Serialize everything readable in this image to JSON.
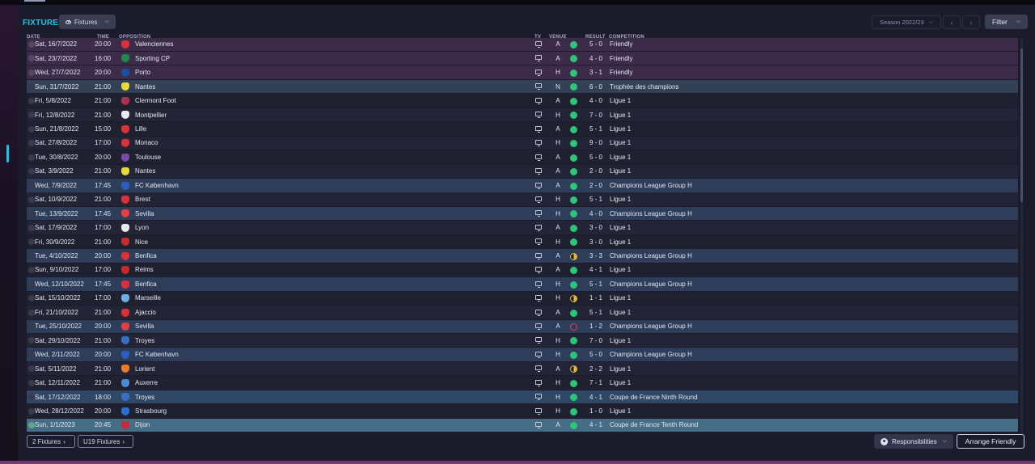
{
  "header": {
    "title": "FIXTURES",
    "view_dropdown": "Fixtures",
    "season": "Season 2022/23",
    "filter": "Filter"
  },
  "columns": {
    "date": "DATE",
    "time": "TIME",
    "opposition": "OPPOSITION",
    "tv": "TV",
    "venue": "VENUE",
    "result": "RESULT",
    "competition": "COMPETITION"
  },
  "colors": {
    "accent": "#19c8e6",
    "win": "#2ec57a",
    "draw": "#e6b43a",
    "loss": "#d8474f",
    "friendly_row": "#3c2c4a",
    "champions_league_row": "#2d3d5a",
    "current_row": "#456e86"
  },
  "fixtures": [
    {
      "date": "Sat, 16/7/2022",
      "time": "20:00",
      "opp": "Valenciennes",
      "crest": "#d9313a",
      "venue": "A",
      "result": "win",
      "score": "5 - 0",
      "comp": "Friendly",
      "type": "friendly"
    },
    {
      "date": "Sat, 23/7/2022",
      "time": "16:00",
      "opp": "Sporting CP",
      "crest": "#1f8a4c",
      "venue": "A",
      "result": "win",
      "score": "4 - 0",
      "comp": "Friendly",
      "type": "friendly"
    },
    {
      "date": "Wed, 27/7/2022",
      "time": "20:00",
      "opp": "Porto",
      "crest": "#1e4fa3",
      "venue": "H",
      "result": "win",
      "score": "3 - 1",
      "comp": "Friendly",
      "type": "friendly"
    },
    {
      "date": "Sun, 31/7/2022",
      "time": "21:00",
      "opp": "Nantes",
      "crest": "#e8d83a",
      "venue": "N",
      "result": "win",
      "score": "6 - 0",
      "comp": "Trophée des champions",
      "type": "trophee"
    },
    {
      "date": "Fri, 5/8/2022",
      "time": "21:00",
      "opp": "Clermont Foot",
      "crest": "#b0304a",
      "venue": "A",
      "result": "win",
      "score": "4 - 0",
      "comp": "Ligue 1",
      "type": "plain"
    },
    {
      "date": "Fri, 12/8/2022",
      "time": "21:00",
      "opp": "Montpellier",
      "crest": "#e8e8ee",
      "venue": "H",
      "result": "win",
      "score": "7 - 0",
      "comp": "Ligue 1",
      "type": "alt"
    },
    {
      "date": "Sun, 21/8/2022",
      "time": "15:00",
      "opp": "Lille",
      "crest": "#d9313a",
      "venue": "A",
      "result": "win",
      "score": "5 - 1",
      "comp": "Ligue 1",
      "type": "plain"
    },
    {
      "date": "Sat, 27/8/2022",
      "time": "17:00",
      "opp": "Monaco",
      "crest": "#d9313a",
      "venue": "H",
      "result": "win",
      "score": "9 - 0",
      "comp": "Ligue 1",
      "type": "alt"
    },
    {
      "date": "Tue, 30/8/2022",
      "time": "20:00",
      "opp": "Toulouse",
      "crest": "#7b4aa8",
      "venue": "A",
      "result": "win",
      "score": "5 - 0",
      "comp": "Ligue 1",
      "type": "plain"
    },
    {
      "date": "Sat, 3/9/2022",
      "time": "21:00",
      "opp": "Nantes",
      "crest": "#e8d83a",
      "venue": "A",
      "result": "win",
      "score": "2 - 0",
      "comp": "Ligue 1",
      "type": "alt"
    },
    {
      "date": "Wed, 7/9/2022",
      "time": "17:45",
      "opp": "FC København",
      "crest": "#2a5fc0",
      "venue": "A",
      "result": "win",
      "score": "2 - 0",
      "comp": "Champions League Group H",
      "type": "ucl"
    },
    {
      "date": "Sat, 10/9/2022",
      "time": "21:00",
      "opp": "Brest",
      "crest": "#d9313a",
      "venue": "H",
      "result": "win",
      "score": "5 - 1",
      "comp": "Ligue 1",
      "type": "alt"
    },
    {
      "date": "Tue, 13/9/2022",
      "time": "17:45",
      "opp": "Sevilla",
      "crest": "#e04040",
      "venue": "H",
      "result": "win",
      "score": "4 - 0",
      "comp": "Champions League Group H",
      "type": "ucl"
    },
    {
      "date": "Sat, 17/9/2022",
      "time": "17:00",
      "opp": "Lyon",
      "crest": "#e8e8ee",
      "venue": "A",
      "result": "win",
      "score": "3 - 0",
      "comp": "Ligue 1",
      "type": "alt"
    },
    {
      "date": "Fri, 30/9/2022",
      "time": "21:00",
      "opp": "Nice",
      "crest": "#c62a2a",
      "venue": "H",
      "result": "win",
      "score": "3 - 0",
      "comp": "Ligue 1",
      "type": "plain"
    },
    {
      "date": "Tue, 4/10/2022",
      "time": "20:00",
      "opp": "Benfica",
      "crest": "#d9313a",
      "venue": "A",
      "result": "draw",
      "score": "3 - 3",
      "comp": "Champions League Group H",
      "type": "ucl"
    },
    {
      "date": "Sun, 9/10/2022",
      "time": "17:00",
      "opp": "Reims",
      "crest": "#c62a2a",
      "venue": "A",
      "result": "win",
      "score": "4 - 1",
      "comp": "Ligue 1",
      "type": "plain"
    },
    {
      "date": "Wed, 12/10/2022",
      "time": "17:45",
      "opp": "Benfica",
      "crest": "#d9313a",
      "venue": "H",
      "result": "win",
      "score": "5 - 1",
      "comp": "Champions League Group H",
      "type": "ucl"
    },
    {
      "date": "Sat, 15/10/2022",
      "time": "17:00",
      "opp": "Marseille",
      "crest": "#6ab0e0",
      "venue": "H",
      "result": "draw",
      "score": "1 - 1",
      "comp": "Ligue 1",
      "type": "plain"
    },
    {
      "date": "Fri, 21/10/2022",
      "time": "21:00",
      "opp": "Ajaccio",
      "crest": "#d9313a",
      "venue": "A",
      "result": "win",
      "score": "5 - 1",
      "comp": "Ligue 1",
      "type": "alt"
    },
    {
      "date": "Tue, 25/10/2022",
      "time": "20:00",
      "opp": "Sevilla",
      "crest": "#e04040",
      "venue": "A",
      "result": "loss",
      "score": "1 - 2",
      "comp": "Champions League Group H",
      "type": "ucl"
    },
    {
      "date": "Sat, 29/10/2022",
      "time": "21:00",
      "opp": "Troyes",
      "crest": "#3a6fc0",
      "venue": "H",
      "result": "win",
      "score": "7 - 0",
      "comp": "Ligue 1",
      "type": "alt"
    },
    {
      "date": "Wed, 2/11/2022",
      "time": "20:00",
      "opp": "FC København",
      "crest": "#2a5fc0",
      "venue": "H",
      "result": "win",
      "score": "5 - 0",
      "comp": "Champions League Group H",
      "type": "ucl"
    },
    {
      "date": "Sat, 5/11/2022",
      "time": "21:00",
      "opp": "Lorient",
      "crest": "#e87a2a",
      "venue": "A",
      "result": "draw",
      "score": "2 - 2",
      "comp": "Ligue 1",
      "type": "alt"
    },
    {
      "date": "Sat, 12/11/2022",
      "time": "21:00",
      "opp": "Auxerre",
      "crest": "#4a8ad8",
      "venue": "H",
      "result": "win",
      "score": "7 - 1",
      "comp": "Ligue 1",
      "type": "plain"
    },
    {
      "date": "Sat, 17/12/2022",
      "time": "18:00",
      "opp": "Troyes",
      "crest": "#3a6fc0",
      "venue": "H",
      "result": "win",
      "score": "4 - 1",
      "comp": "Coupe de France Ninth Round",
      "type": "cdf"
    },
    {
      "date": "Wed, 28/12/2022",
      "time": "20:00",
      "opp": "Strasbourg",
      "crest": "#2a6fd0",
      "venue": "H",
      "result": "win",
      "score": "1 - 0",
      "comp": "Ligue 1",
      "type": "plain"
    },
    {
      "date": "Sun, 1/1/2023",
      "time": "20:45",
      "opp": "Dijon",
      "crest": "#c62a3a",
      "venue": "A",
      "result": "win",
      "score": "4 - 1",
      "comp": "Coupe de France Tenth Round",
      "type": "current"
    }
  ],
  "footer": {
    "two_fixtures": "2 Fixtures",
    "u19_fixtures": "U19 Fixtures",
    "responsibilities": "Responsibilities",
    "arrange_friendly": "Arrange Friendly"
  }
}
